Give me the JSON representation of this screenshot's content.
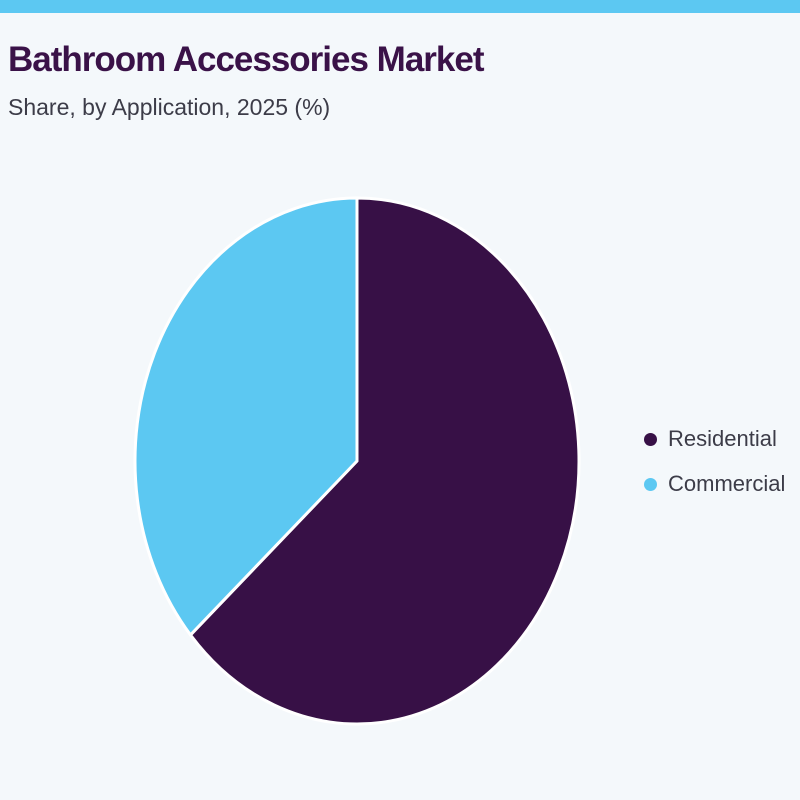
{
  "header": {
    "title": "Bathroom Accessories Market",
    "subtitle": "Share, by Application, 2025 (%)",
    "accent_color": "#5cc8f2"
  },
  "chart_data": {
    "type": "pie",
    "title": "Bathroom Accessories Market",
    "subtitle": "Share, by Application, 2025 (%)",
    "categories": [
      "Residential",
      "Commercial"
    ],
    "values": [
      63.5,
      36.5
    ],
    "colors": [
      "#371046",
      "#5cc8f2"
    ],
    "start_angle_deg": 0,
    "direction": "clockwise",
    "legend_position": "right"
  }
}
